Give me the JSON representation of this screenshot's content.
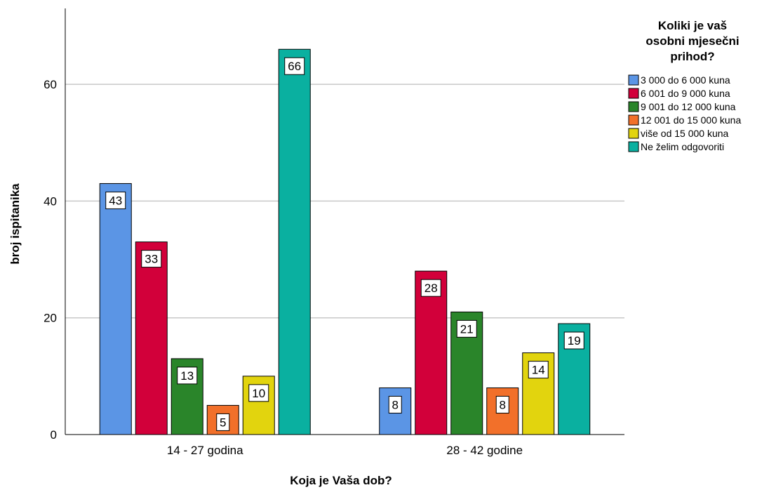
{
  "chart_data": {
    "type": "bar",
    "xlabel": "Koja je Vaša dob?",
    "ylabel": "broj ispitanika",
    "ylim": [
      0,
      73
    ],
    "yticks": [
      0,
      20,
      40,
      60
    ],
    "grid": true,
    "legend_position": "right",
    "legend_title_lines": [
      "Koliki je vaš",
      "osobni mjesečni",
      "prihod?"
    ],
    "categories": [
      "14 - 27 godina",
      "28 - 42 godine"
    ],
    "series": [
      {
        "name": "3 000 do 6 000 kuna",
        "color": "#5b95e5",
        "values": [
          43,
          8
        ]
      },
      {
        "name": "6 001 do 9 000 kuna",
        "color": "#d2003a",
        "values": [
          33,
          28
        ]
      },
      {
        "name": "9 001 do 12 000 kuna",
        "color": "#2a852a",
        "values": [
          13,
          21
        ]
      },
      {
        "name": "12 001 do 15 000 kuna",
        "color": "#f2702a",
        "values": [
          5,
          8
        ]
      },
      {
        "name": "više od 15 000 kuna",
        "color": "#e2d40e",
        "values": [
          10,
          14
        ]
      },
      {
        "name": "Ne želim odgovoriti",
        "color": "#0ab0a0",
        "values": [
          66,
          19
        ]
      }
    ]
  }
}
